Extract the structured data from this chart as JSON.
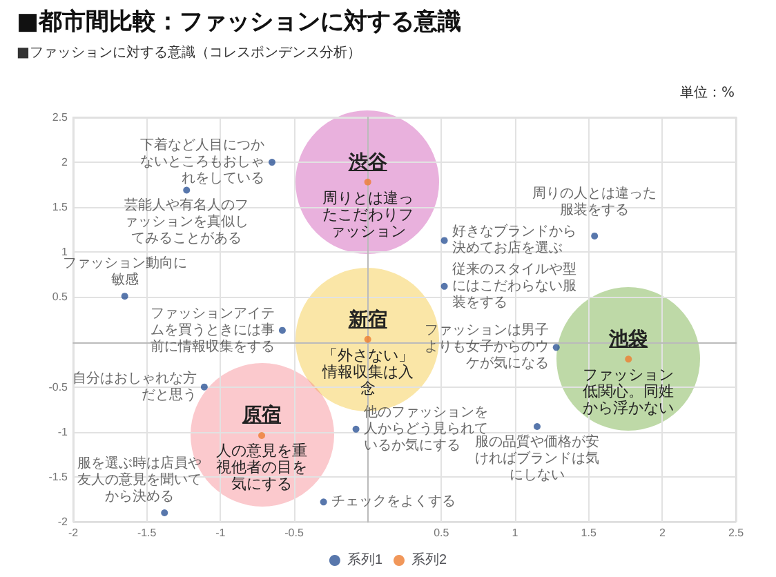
{
  "chart_data": {
    "type": "scatter",
    "title": "■都市間比較：ファッションに対する意識",
    "subtitle": "■ファッションに対する意識（コレスポンデンス分析）",
    "annotations": [
      "単位：%",
      {
        "text": "渋谷",
        "x": 0,
        "y": 1.78
      },
      {
        "text": "周りとは違ったこだわりファッション",
        "x": 0,
        "y": 1.78
      },
      {
        "text": "新宿",
        "x": 0,
        "y": 0.03
      },
      {
        "text": "「外さない」情報収集は入念",
        "x": 0,
        "y": 0.03
      },
      {
        "text": "池袋",
        "x": 1.77,
        "y": -0.19
      },
      {
        "text": "ファッション低関心。同姓から浮かない",
        "x": 1.77,
        "y": -0.19
      },
      {
        "text": "原宿",
        "x": -0.72,
        "y": -1.04
      },
      {
        "text": "人の意見を重視他者の目を気にする",
        "x": -0.72,
        "y": -1.04
      }
    ],
    "series": [
      {
        "name": "系列1",
        "color": "#2e5597",
        "x": [
          -0.65,
          -1.23,
          -1.65,
          0.52,
          1.54,
          0.52,
          -0.58,
          -1.11,
          -0.08,
          1.28,
          1.15,
          -1.38,
          -0.3
        ],
        "values": [
          2.0,
          1.69,
          0.51,
          1.13,
          1.18,
          0.62,
          0.13,
          -0.5,
          -0.97,
          -0.06,
          -0.94,
          -1.9,
          -1.78
        ],
        "value_labels": [
          "下着など人目につかないところもおしゃれをしている",
          "芸能人や有名人のファッションを真似してみることがある",
          "ファッション動向に敏感",
          "好きなブランドから決めてお店を選ぶ",
          "周りの人とは違った服装をする",
          "従来のスタイルや型にはこだわらない服装をする",
          "ファッションアイテムを買うときには事前に情報収集をする",
          "自分はおしゃれな方だと思う",
          "他のファッションを人からどう見られているか気にする",
          "ファッションは男子よりも女子からのウケが気になる",
          "服の品質や価格が安ければブランドは気にしない",
          "服を選ぶ時は店員や友人の意見を聞いてから決める",
          "チェックをよくする"
        ]
      },
      {
        "name": "系列2",
        "color": "#ed7d31",
        "x": [
          0,
          0,
          1.77,
          -0.72
        ],
        "values": [
          1.78,
          0.03,
          -0.19,
          -1.04
        ]
      }
    ],
    "xlim": [
      -2,
      2.5
    ],
    "ylim": [
      -2,
      2.5
    ],
    "xticks": [
      -2,
      -1.5,
      -1,
      -0.5,
      {
        "value": 0,
        "label": null
      },
      0.5,
      1,
      1.5,
      2,
      2.5
    ],
    "yticks": [
      -2,
      -1.5,
      -1,
      -0.5,
      {
        "value": 0,
        "label": null
      },
      0.5,
      1,
      1.5,
      2,
      2.5
    ],
    "grid": true,
    "legend": "bottom",
    "marker": "circle"
  }
}
